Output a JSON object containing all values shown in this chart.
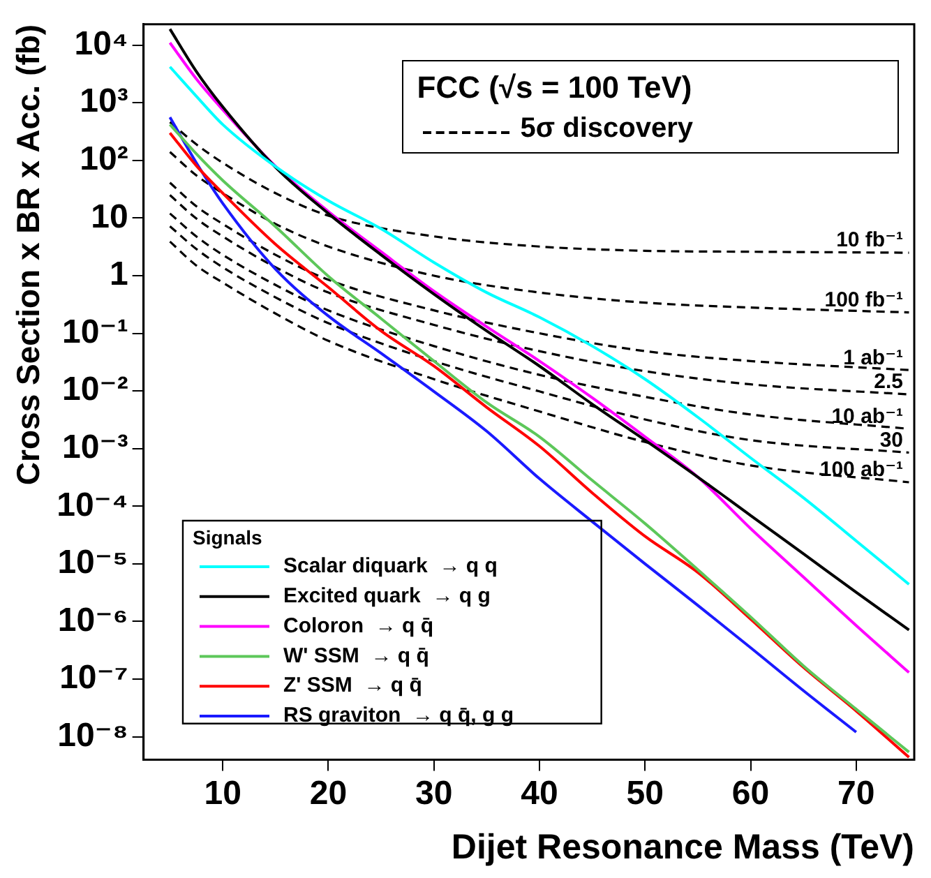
{
  "chart_data": {
    "type": "line",
    "xlabel": "Dijet Resonance Mass (TeV)",
    "ylabel": "Cross Section x BR x Acc. (fb)",
    "legend_title": "Signals",
    "legend": "bottom left",
    "log": "y",
    "grid": false,
    "marker": "none",
    "xlim": [
      2.5,
      75.5
    ],
    "xticks": [
      10,
      20,
      30,
      40,
      50,
      60,
      70
    ],
    "ylim": [
      4e-09,
      23000
    ],
    "yticks": [
      {
        "value": 10000.0,
        "label": "10⁴"
      },
      {
        "value": 1000.0,
        "label": "10³"
      },
      {
        "value": 100,
        "label": "10²"
      },
      10,
      1,
      {
        "value": 0.1,
        "label": "10⁻¹"
      },
      {
        "value": 0.01,
        "label": "10⁻²"
      },
      {
        "value": 0.001,
        "label": "10⁻³"
      },
      {
        "value": 0.0001,
        "label": "10⁻⁴"
      },
      {
        "value": 1e-05,
        "label": "10⁻⁵"
      },
      {
        "value": 1e-06,
        "label": "10⁻⁶"
      },
      {
        "value": 1e-07,
        "label": "10⁻⁷"
      },
      {
        "value": 1e-08,
        "label": "10⁻⁸"
      }
    ],
    "annotations": [
      "FCC (√s = 100 TeV)",
      "5σ discovery"
    ],
    "series": [
      {
        "name": "Scalar diquark  → q q",
        "color": "#00ffff",
        "x": [
          5,
          7.5,
          10,
          15,
          20,
          25,
          30,
          35,
          40,
          45,
          50,
          55,
          60,
          65,
          70,
          75
        ],
        "values": [
          4200,
          1300,
          420,
          78,
          20,
          6.5,
          1.7,
          0.51,
          0.19,
          0.06,
          0.016,
          0.0035,
          0.00069,
          0.00014,
          2.5e-05,
          4.4e-06
        ]
      },
      {
        "name": "Excited quark  → q g",
        "color": "#000000",
        "x": [
          5,
          7.5,
          10,
          15,
          20,
          25,
          30,
          35,
          40,
          45,
          50,
          55,
          60,
          65,
          70,
          75
        ],
        "values": [
          19000,
          3500,
          850,
          76,
          12,
          2.3,
          0.48,
          0.11,
          0.027,
          0.0059,
          0.0014,
          0.00032,
          6.9e-05,
          1.5e-05,
          3.2e-06,
          7.1e-07
        ]
      },
      {
        "name": "Coloron  → q q̄",
        "color": "#ff00ff",
        "x": [
          5,
          7.5,
          10,
          15,
          20,
          25,
          30,
          35,
          40,
          45,
          50,
          55,
          60,
          65,
          70,
          75
        ],
        "values": [
          11000,
          2600,
          760,
          79,
          13,
          2.6,
          0.54,
          0.13,
          0.033,
          0.0076,
          0.0016,
          0.00032,
          4.1e-05,
          5.9e-06,
          8.5e-07,
          1.3e-07
        ]
      },
      {
        "name": "W' SSM  → q q̄",
        "color": "#5dc75a",
        "x": [
          5,
          7.5,
          10,
          15,
          20,
          25,
          30,
          35,
          40,
          45,
          50,
          55,
          60,
          65,
          70,
          75
        ],
        "values": [
          420,
          130,
          45,
          7.1,
          0.98,
          0.18,
          0.033,
          0.0063,
          0.0016,
          0.00028,
          5e-05,
          7.9e-06,
          1.2e-06,
          1.7e-07,
          3e-08,
          5.4e-09
        ]
      },
      {
        "name": "Z' SSM  → q q̄",
        "color": "#ff0000",
        "x": [
          5,
          7.5,
          10,
          15,
          20,
          25,
          30,
          35,
          40,
          45,
          50,
          55,
          60,
          65,
          70,
          75
        ],
        "values": [
          300,
          81,
          27,
          3.5,
          0.63,
          0.11,
          0.027,
          0.0052,
          0.0011,
          0.00017,
          3e-05,
          7.1e-06,
          1.1e-06,
          1.6e-07,
          2.8e-08,
          4.4e-09
        ]
      },
      {
        "name": "RS graviton  → q q̄, g g",
        "color": "#1a1aff",
        "x": [
          5,
          7.5,
          10,
          15,
          20,
          25,
          30,
          35,
          40,
          45,
          50,
          55,
          60,
          65,
          70
        ],
        "values": [
          560,
          91,
          18,
          1.3,
          0.2,
          0.045,
          0.0098,
          0.002,
          0.0003,
          5.4e-05,
          1e-05,
          1.9e-06,
          3.5e-07,
          6.3e-08,
          1.2e-08
        ]
      },
      {
        "name": "10 fb⁻¹",
        "color": "#000000",
        "line_style": "dashed",
        "x": [
          5,
          7.5,
          10,
          15,
          20,
          30,
          40,
          50,
          60,
          75
        ],
        "values": [
          460,
          190,
          91,
          27,
          11,
          4.8,
          3.2,
          2.7,
          2.6,
          2.5
        ]
      },
      {
        "name": "100 fb⁻¹",
        "color": "#000000",
        "line_style": "dashed",
        "x": [
          5,
          7.5,
          10,
          15,
          20,
          30,
          40,
          50,
          60,
          75
        ],
        "values": [
          140,
          55,
          27,
          7.9,
          3.2,
          1.0,
          0.51,
          0.34,
          0.28,
          0.23
        ]
      },
      {
        "name": "1 ab⁻¹",
        "color": "#000000",
        "line_style": "dashed",
        "x": [
          5,
          7.5,
          10,
          15,
          20,
          30,
          40,
          50,
          60,
          75
        ],
        "values": [
          41,
          16,
          7.9,
          2.3,
          0.85,
          0.25,
          0.1,
          0.049,
          0.033,
          0.023
        ]
      },
      {
        "name": "2.5",
        "color": "#000000",
        "line_style": "dashed",
        "x": [
          5,
          7.5,
          10,
          15,
          20,
          30,
          40,
          50,
          60,
          75
        ],
        "values": [
          25,
          9.8,
          4.8,
          1.4,
          0.51,
          0.14,
          0.049,
          0.022,
          0.013,
          0.0087
        ]
      },
      {
        "name": "10 ab⁻¹",
        "color": "#000000",
        "line_style": "dashed",
        "x": [
          5,
          7.5,
          10,
          15,
          20,
          30,
          40,
          50,
          60,
          75
        ],
        "values": [
          12,
          4.8,
          2.3,
          0.69,
          0.25,
          0.06,
          0.019,
          0.0079,
          0.0039,
          0.0022
        ]
      },
      {
        "name": "30",
        "color": "#000000",
        "line_style": "dashed",
        "x": [
          5,
          7.5,
          10,
          15,
          20,
          30,
          40,
          50,
          60,
          75
        ],
        "values": [
          7.2,
          2.9,
          1.4,
          0.42,
          0.15,
          0.033,
          0.0098,
          0.0032,
          0.0014,
          0.00085
        ]
      },
      {
        "name": "100 ab⁻¹",
        "color": "#000000",
        "line_style": "dashed",
        "x": [
          5,
          7.5,
          10,
          15,
          20,
          30,
          40,
          50,
          60,
          75
        ],
        "values": [
          3.9,
          1.5,
          0.76,
          0.22,
          0.074,
          0.016,
          0.0044,
          0.0013,
          0.00051,
          0.00026
        ]
      }
    ]
  }
}
